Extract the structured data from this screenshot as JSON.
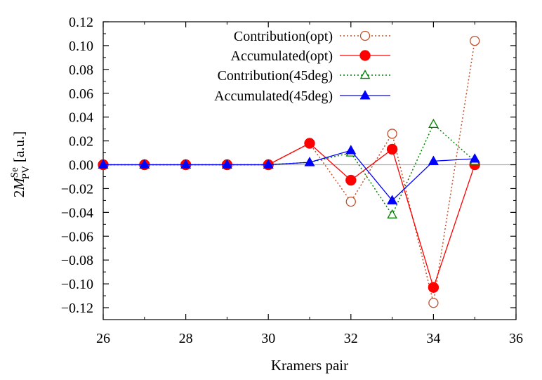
{
  "chart_data": {
    "type": "line",
    "xlabel": "Kramers pair",
    "ylabel": {
      "prefix": "2",
      "symbol": "M",
      "superscript": "Se",
      "subscript": "PV",
      "unit": "[a.u.]"
    },
    "xlim": [
      26,
      36
    ],
    "ylim": [
      -0.13,
      0.12
    ],
    "xticks": [
      26,
      28,
      30,
      32,
      34,
      36
    ],
    "yticks": [
      0.12,
      0.1,
      0.08,
      0.06,
      0.04,
      0.02,
      0.0,
      -0.02,
      -0.04,
      -0.06,
      -0.08,
      -0.1,
      -0.12
    ],
    "xtick_labels": [
      "26",
      "28",
      "30",
      "32",
      "34",
      "36"
    ],
    "ytick_labels": [
      "0.12",
      "0.10",
      "0.08",
      "0.06",
      "0.04",
      "0.02",
      "0.00",
      "−0.02",
      "−0.04",
      "−0.06",
      "−0.08",
      "−0.10",
      "−0.12"
    ],
    "zero_line": true,
    "grid": false,
    "legend_position": "top-center",
    "x": [
      26,
      27,
      28,
      29,
      30,
      31,
      32,
      33,
      34,
      35
    ],
    "series": [
      {
        "name": "Contribution(opt)",
        "color": "#c0502a",
        "line": "dotted",
        "marker": "open-circle",
        "values": [
          0.0,
          0.0,
          0.0,
          0.0,
          0.0,
          0.018,
          -0.031,
          0.026,
          -0.116,
          0.104
        ]
      },
      {
        "name": "Accumulated(opt)",
        "color": "#ff0000",
        "line": "solid",
        "marker": "filled-circle",
        "values": [
          0.0,
          0.0,
          0.0,
          0.0,
          0.0,
          0.018,
          -0.013,
          0.013,
          -0.103,
          0.0
        ]
      },
      {
        "name": "Contribution(45deg)",
        "color": "#008000",
        "line": "dotted",
        "marker": "open-triangle",
        "values": [
          0.0,
          0.0,
          0.0,
          0.0,
          0.0,
          0.002,
          0.01,
          -0.042,
          0.034,
          0.003
        ]
      },
      {
        "name": "Accumulated(45deg)",
        "color": "#0000ff",
        "line": "solid",
        "marker": "filled-triangle",
        "values": [
          0.0,
          0.0,
          0.0,
          0.0,
          0.0,
          0.002,
          0.012,
          -0.03,
          0.003,
          0.005
        ]
      }
    ]
  }
}
